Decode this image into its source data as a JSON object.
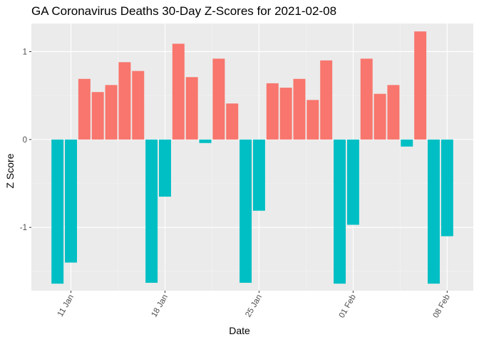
{
  "chart_data": {
    "type": "bar",
    "title": "GA Coronavirus Deaths 30-Day Z-Scores for 2021-02-08",
    "xlabel": "Date",
    "ylabel": "Z Score",
    "x_start_label": "2021-01-10",
    "categories": [
      "2021-01-10",
      "2021-01-11",
      "2021-01-12",
      "2021-01-13",
      "2021-01-14",
      "2021-01-15",
      "2021-01-16",
      "2021-01-17",
      "2021-01-18",
      "2021-01-19",
      "2021-01-20",
      "2021-01-21",
      "2021-01-22",
      "2021-01-23",
      "2021-01-24",
      "2021-01-25",
      "2021-01-26",
      "2021-01-27",
      "2021-01-28",
      "2021-01-29",
      "2021-01-30",
      "2021-01-31",
      "2021-02-01",
      "2021-02-02",
      "2021-02-03",
      "2021-02-04",
      "2021-02-05",
      "2021-02-06",
      "2021-02-07",
      "2021-02-08"
    ],
    "values": [
      -1.64,
      -1.4,
      0.69,
      0.54,
      0.62,
      0.88,
      0.78,
      -1.63,
      -0.65,
      1.09,
      0.71,
      -0.04,
      0.92,
      0.41,
      -1.63,
      -0.81,
      0.64,
      0.59,
      0.69,
      0.45,
      0.9,
      -1.64,
      -0.97,
      0.92,
      0.52,
      0.62,
      -0.08,
      1.23,
      -1.64,
      -1.1
    ],
    "x_ticks": [
      "11 Jan",
      "18 Jan",
      "25 Jan",
      "01 Feb",
      "08 Feb"
    ],
    "x_tick_dates": [
      "2021-01-11",
      "2021-01-18",
      "2021-01-25",
      "2021-02-01",
      "2021-02-08"
    ],
    "y_ticks": [
      -1,
      0,
      1
    ],
    "ylim": [
      -1.72,
      1.32
    ],
    "grid": true,
    "legend": "none",
    "colors": {
      "positive": "#F8766D",
      "negative": "#00BFC4",
      "panel": "#EBEBEB",
      "grid_major": "#FFFFFF",
      "grid_minor": "#F4F4F4",
      "tick_text": "#4D4D4D"
    }
  }
}
